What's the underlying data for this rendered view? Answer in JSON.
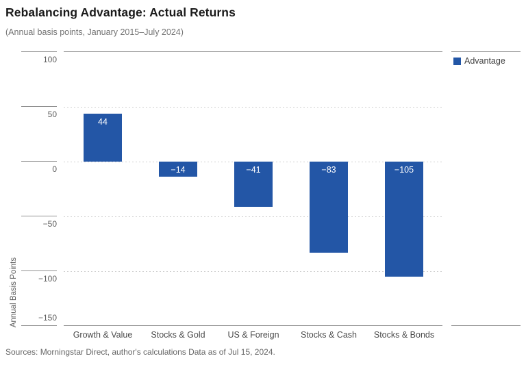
{
  "header": {
    "title": "Rebalancing Advantage: Actual Returns",
    "subtitle": "(Annual basis points, January 2015–July 2024)"
  },
  "legend": {
    "label": "Advantage",
    "color": "#2356A6"
  },
  "footer": {
    "sources": "Sources: Morningstar Direct, author's calculations Data as of Jul 15, 2024."
  },
  "chart_data": {
    "type": "bar",
    "title": "Rebalancing Advantage: Actual Returns",
    "subtitle": "(Annual basis points, January 2015–July 2024)",
    "categories": [
      "Growth & Value",
      "Stocks & Gold",
      "US & Foreign",
      "Stocks & Cash",
      "Stocks & Bonds"
    ],
    "series": [
      {
        "name": "Advantage",
        "values": [
          44,
          -14,
          -41,
          -83,
          -105
        ]
      }
    ],
    "values": [
      44,
      -14,
      -41,
      -83,
      -105
    ],
    "value_labels": [
      "44",
      "−14",
      "−41",
      "−83",
      "−105"
    ],
    "xlabel": "",
    "ylabel": "Annual Basis Points",
    "yticks": [
      100,
      50,
      0,
      -50,
      -100,
      -150
    ],
    "ylim": [
      -150,
      100
    ],
    "bar_color": "#2356A6",
    "grid": "horizontal dotted",
    "legend_position": "right-top"
  }
}
